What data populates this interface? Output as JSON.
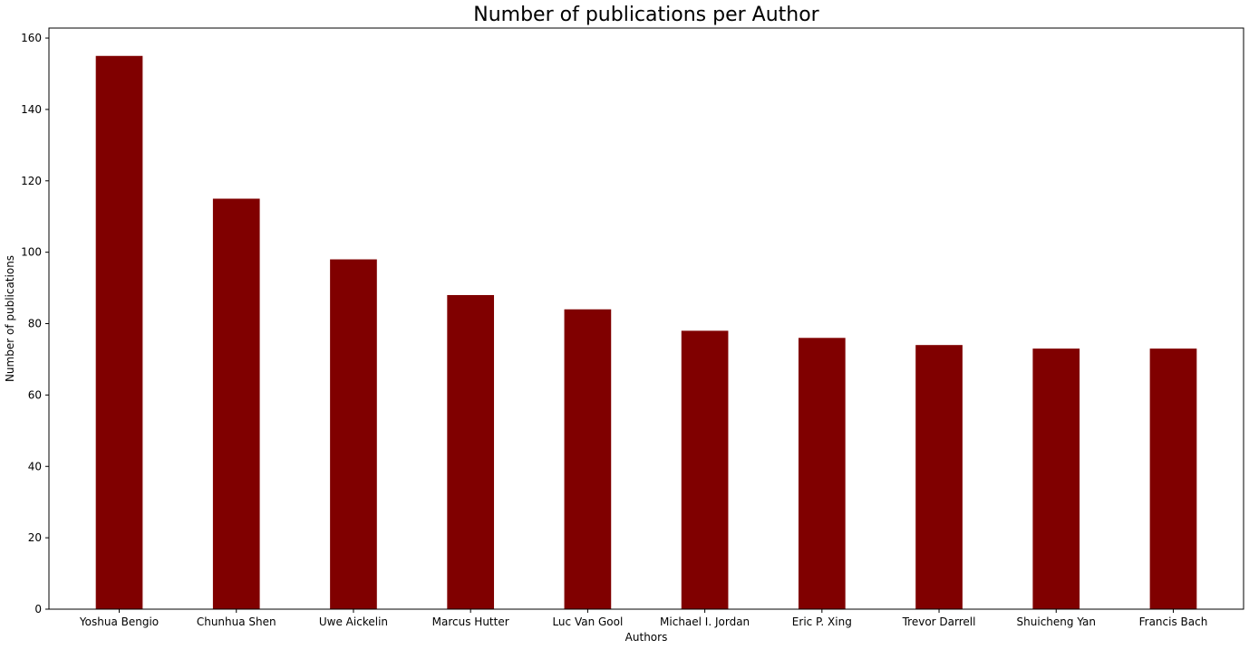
{
  "chart_data": {
    "type": "bar",
    "title": "Number of publications per Author",
    "xlabel": "Authors",
    "ylabel": "Number of publications",
    "categories": [
      "Yoshua Bengio",
      "Chunhua Shen",
      "Uwe Aickelin",
      "Marcus Hutter",
      "Luc Van Gool",
      "Michael I. Jordan",
      "Eric P. Xing",
      "Trevor Darrell",
      "Shuicheng Yan",
      "Francis Bach"
    ],
    "values": [
      155,
      115,
      98,
      88,
      84,
      78,
      76,
      74,
      73,
      73
    ],
    "ylim": [
      0,
      162.8
    ],
    "yticks": [
      0,
      20,
      40,
      60,
      80,
      100,
      120,
      140,
      160
    ],
    "bar_color": "#800000",
    "grid": false,
    "legend": "none"
  }
}
